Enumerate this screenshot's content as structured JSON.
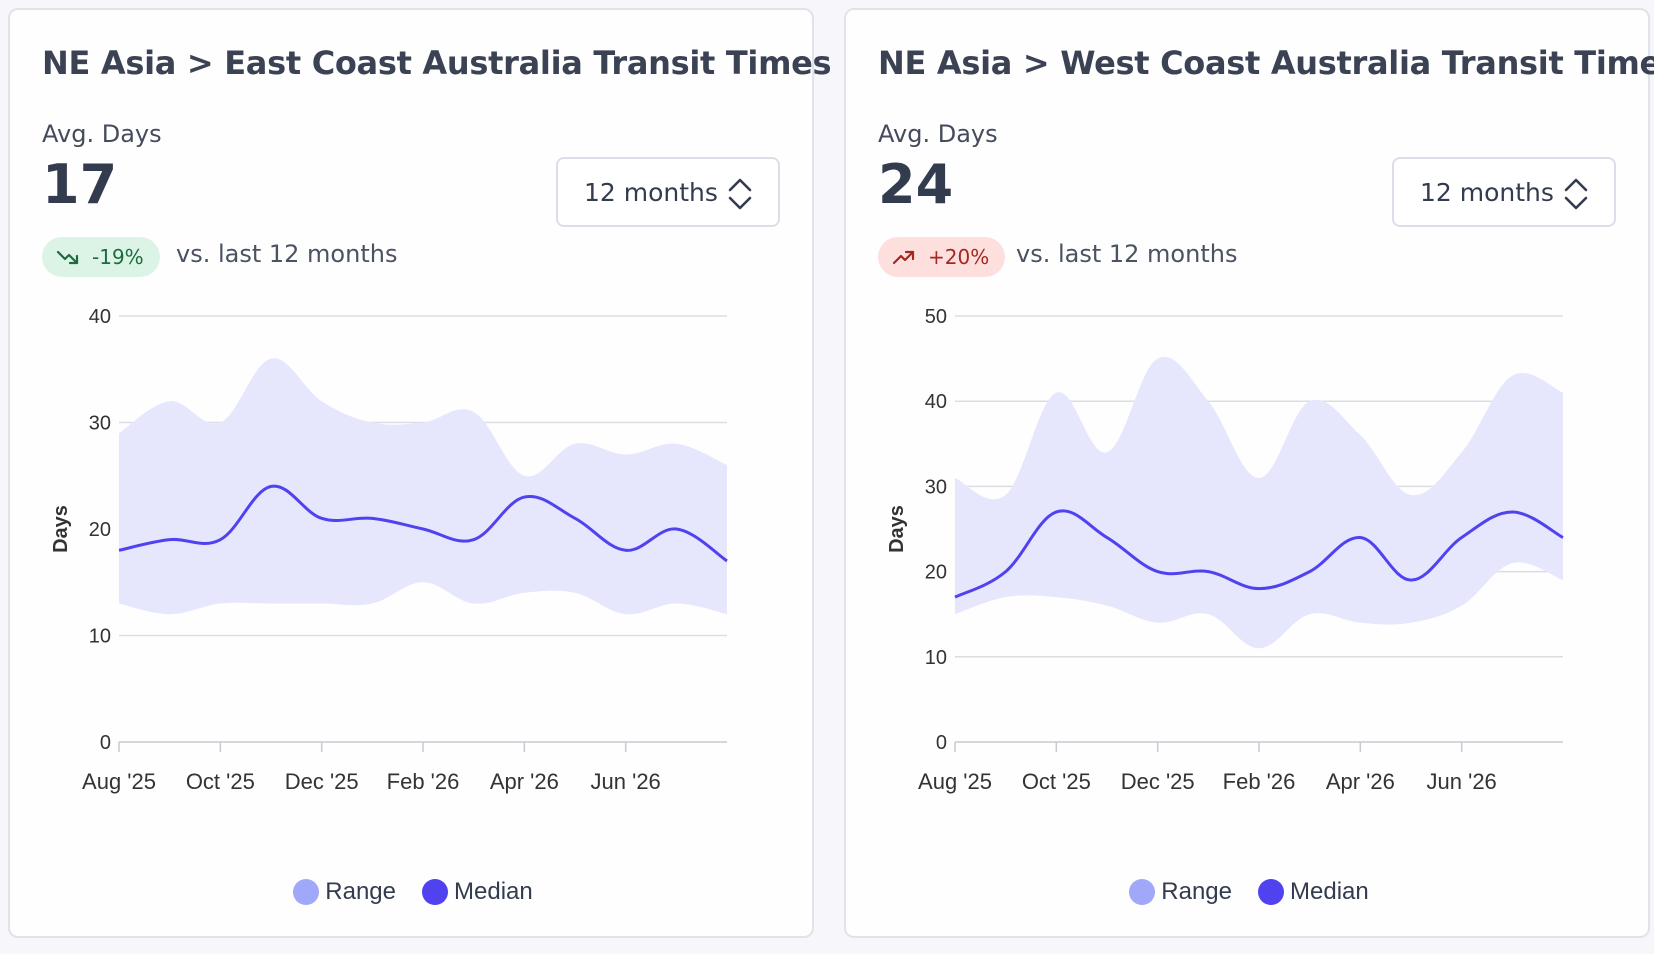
{
  "colors": {
    "range_fill": "#e6e7fd",
    "range_legend": "#a0a8fa",
    "median": "#5142f0",
    "grid": "#dcdde3",
    "axis_text": "#333333"
  },
  "cards": [
    {
      "title": "NE Asia > East Coast Australia Transit Times",
      "metric_label": "Avg. Days",
      "metric_value": "17",
      "period_select": "12 months",
      "change": {
        "text": "-19%",
        "direction": "down",
        "icon": "trend-down-icon"
      },
      "compare_text": "vs. last 12 months",
      "legend": [
        {
          "label": "Range",
          "color": "#a0a8fa"
        },
        {
          "label": "Median",
          "color": "#5142f0"
        }
      ]
    },
    {
      "title": "NE Asia > West Coast Australia Transit Times",
      "metric_label": "Avg. Days",
      "metric_value": "24",
      "period_select": "12 months",
      "change": {
        "text": "+20%",
        "direction": "up",
        "icon": "trend-up-icon"
      },
      "compare_text": "vs. last 12 months",
      "legend": [
        {
          "label": "Range",
          "color": "#a0a8fa"
        },
        {
          "label": "Median",
          "color": "#5142f0"
        }
      ]
    }
  ],
  "chart_data": [
    {
      "type": "area",
      "title": "NE Asia > East Coast Australia Transit Times",
      "xlabel": "",
      "ylabel": "Days",
      "ylim": [
        0,
        40
      ],
      "yticks": [
        0,
        10,
        20,
        30,
        40
      ],
      "x": [
        "Aug '25",
        "Sep '25",
        "Oct '25",
        "Nov '25",
        "Dec '25",
        "Jan '26",
        "Feb '26",
        "Mar '26",
        "Apr '26",
        "May '26",
        "Jun '26",
        "Jul '26",
        "Aug '26"
      ],
      "xtick_labels": [
        "Aug '25",
        "Oct '25",
        "Dec '25",
        "Feb '26",
        "Apr '26",
        "Jun '26"
      ],
      "series": [
        {
          "name": "Range",
          "kind": "band",
          "low": [
            13,
            12,
            13,
            13,
            13,
            13,
            15,
            13,
            14,
            14,
            12,
            13,
            12
          ],
          "high": [
            29,
            32,
            30,
            36,
            32,
            30,
            30,
            31,
            25,
            28,
            27,
            28,
            26
          ]
        },
        {
          "name": "Median",
          "kind": "line",
          "values": [
            18,
            19,
            19,
            24,
            21,
            21,
            20,
            19,
            23,
            21,
            18,
            20,
            17
          ]
        }
      ],
      "grid": true,
      "legend_position": "bottom-center"
    },
    {
      "type": "area",
      "title": "NE Asia > West Coast Australia Transit Times",
      "xlabel": "",
      "ylabel": "Days",
      "ylim": [
        0,
        50
      ],
      "yticks": [
        0,
        10,
        20,
        30,
        40,
        50
      ],
      "x": [
        "Aug '25",
        "Sep '25",
        "Oct '25",
        "Nov '25",
        "Dec '25",
        "Jan '26",
        "Feb '26",
        "Mar '26",
        "Apr '26",
        "May '26",
        "Jun '26",
        "Jul '26",
        "Aug '26"
      ],
      "xtick_labels": [
        "Aug '25",
        "Oct '25",
        "Dec '25",
        "Feb '26",
        "Apr '26",
        "Jun '26"
      ],
      "series": [
        {
          "name": "Range",
          "kind": "band",
          "low": [
            15,
            17,
            17,
            16,
            14,
            15,
            11,
            15,
            14,
            14,
            16,
            21,
            19
          ],
          "high": [
            31,
            29,
            41,
            34,
            45,
            40,
            31,
            40,
            36,
            29,
            34,
            43,
            41
          ]
        },
        {
          "name": "Median",
          "kind": "line",
          "values": [
            17,
            20,
            27,
            24,
            20,
            20,
            18,
            20,
            24,
            19,
            24,
            27,
            24
          ]
        }
      ],
      "grid": true,
      "legend_position": "bottom-center"
    }
  ]
}
